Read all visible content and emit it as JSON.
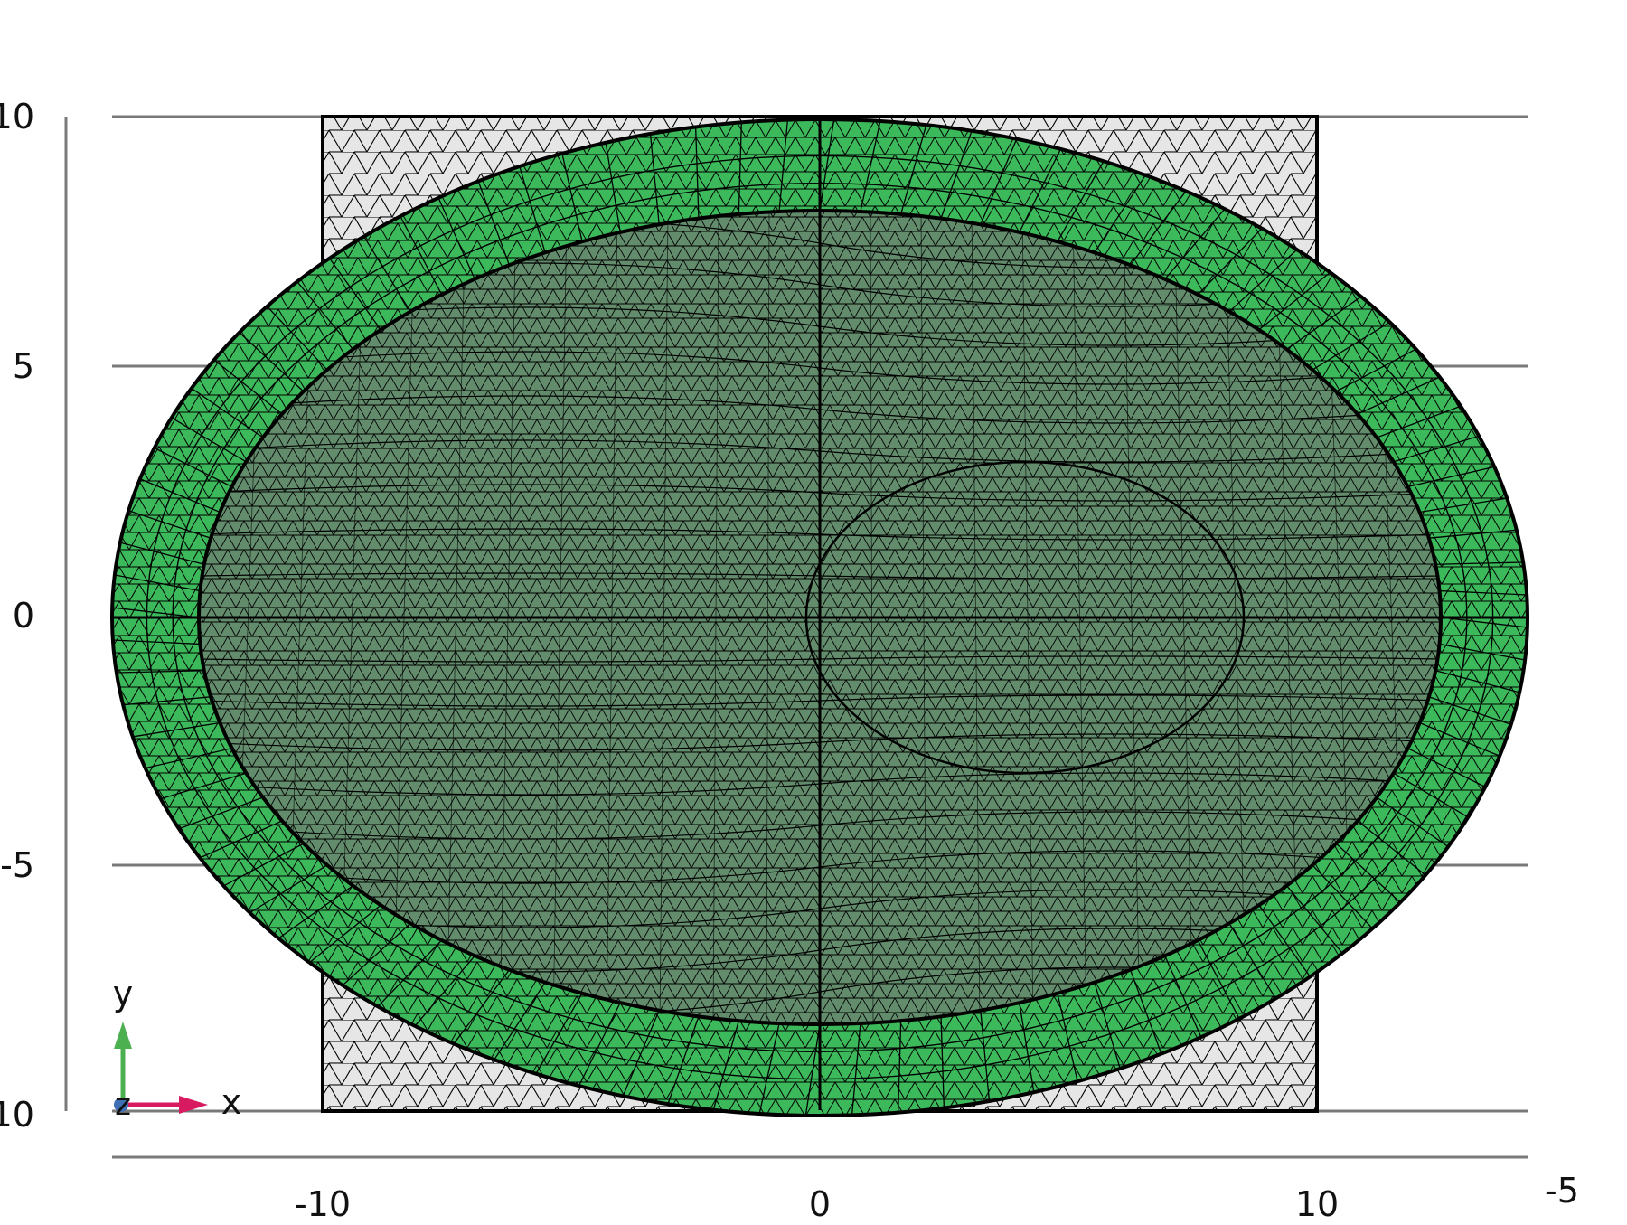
{
  "axes": {
    "y_ticks": [
      "10",
      "5",
      "0",
      "-5",
      "-10"
    ],
    "x_ticks": [
      "-10",
      "0",
      "10"
    ],
    "corner_label": "-5",
    "grid_color": "#7a7a7a"
  },
  "triad": {
    "y_label": "y",
    "x_label": "x",
    "z_label": "z",
    "y_color": "#4caf50",
    "x_color": "#d81b60",
    "z_color": "#3f6fb5"
  },
  "mesh": {
    "outer_ring_color": "#3cb95a",
    "inner_region_color": "#6aa97a",
    "square_fill_color": "#e6e6e6",
    "edge_color": "#000000"
  }
}
